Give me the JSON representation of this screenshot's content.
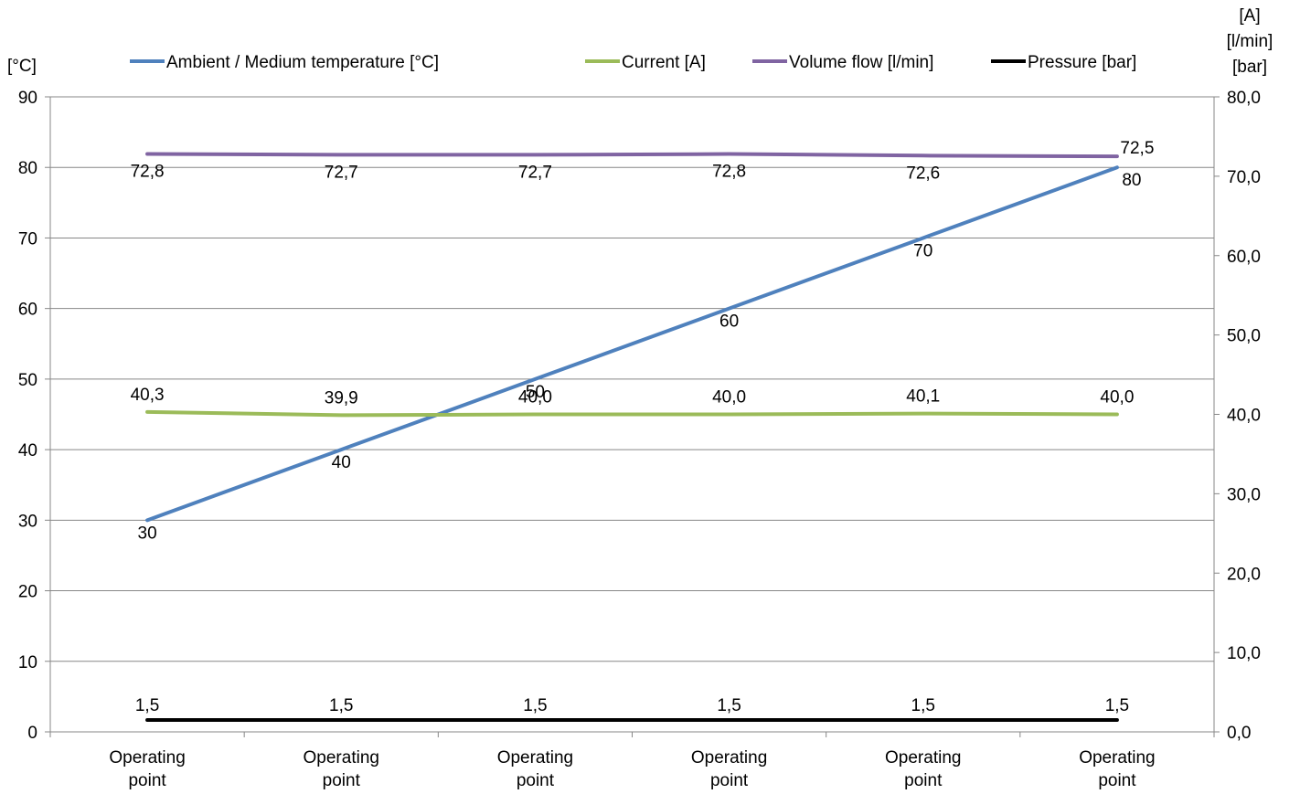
{
  "chart_data": {
    "type": "line",
    "categories": [
      "Operating point",
      "Operating point",
      "Operating point",
      "Operating point",
      "Operating point",
      "Operating point"
    ],
    "y_left": {
      "unit_label": "[°C]",
      "ylim": [
        0,
        90
      ],
      "ticks": [
        0,
        10,
        20,
        30,
        40,
        50,
        60,
        70,
        80,
        90
      ],
      "tick_labels": [
        "0",
        "10",
        "20",
        "30",
        "40",
        "50",
        "60",
        "70",
        "80",
        "90"
      ]
    },
    "y_right": {
      "unit_labels": [
        "[A]",
        "[l/min]",
        "[bar]"
      ],
      "ylim": [
        0,
        80
      ],
      "ticks": [
        0,
        10,
        20,
        30,
        40,
        50,
        60,
        70,
        80
      ],
      "tick_labels": [
        "0,0",
        "10,0",
        "20,0",
        "30,0",
        "40,0",
        "50,0",
        "60,0",
        "70,0",
        "80,0"
      ]
    },
    "grid": true,
    "legend_position": "top",
    "series": [
      {
        "name": "Ambient / Medium temperature [°C]",
        "axis": "left",
        "color": "#4F81BD",
        "values": [
          30,
          40,
          50,
          60,
          70,
          80
        ],
        "labels": [
          "30",
          "40",
          "50",
          "60",
          "70",
          "80"
        ]
      },
      {
        "name": "Current [A]",
        "axis": "right",
        "color": "#9BBB59",
        "values": [
          40.3,
          39.9,
          40.0,
          40.0,
          40.1,
          40.0
        ],
        "labels": [
          "40,3",
          "39,9",
          "40,0",
          "40,0",
          "40,1",
          "40,0"
        ]
      },
      {
        "name": "Volume flow [l/min]",
        "axis": "right",
        "color": "#8064A2",
        "values": [
          72.8,
          72.7,
          72.7,
          72.8,
          72.6,
          72.5
        ],
        "labels": [
          "72,8",
          "72,7",
          "72,7",
          "72,8",
          "72,6",
          "72,5"
        ]
      },
      {
        "name": "Pressure [bar]",
        "axis": "right",
        "color": "#000000",
        "values": [
          1.5,
          1.5,
          1.5,
          1.5,
          1.5,
          1.5
        ],
        "labels": [
          "1,5",
          "1,5",
          "1,5",
          "1,5",
          "1,5",
          "1,5"
        ]
      }
    ]
  }
}
